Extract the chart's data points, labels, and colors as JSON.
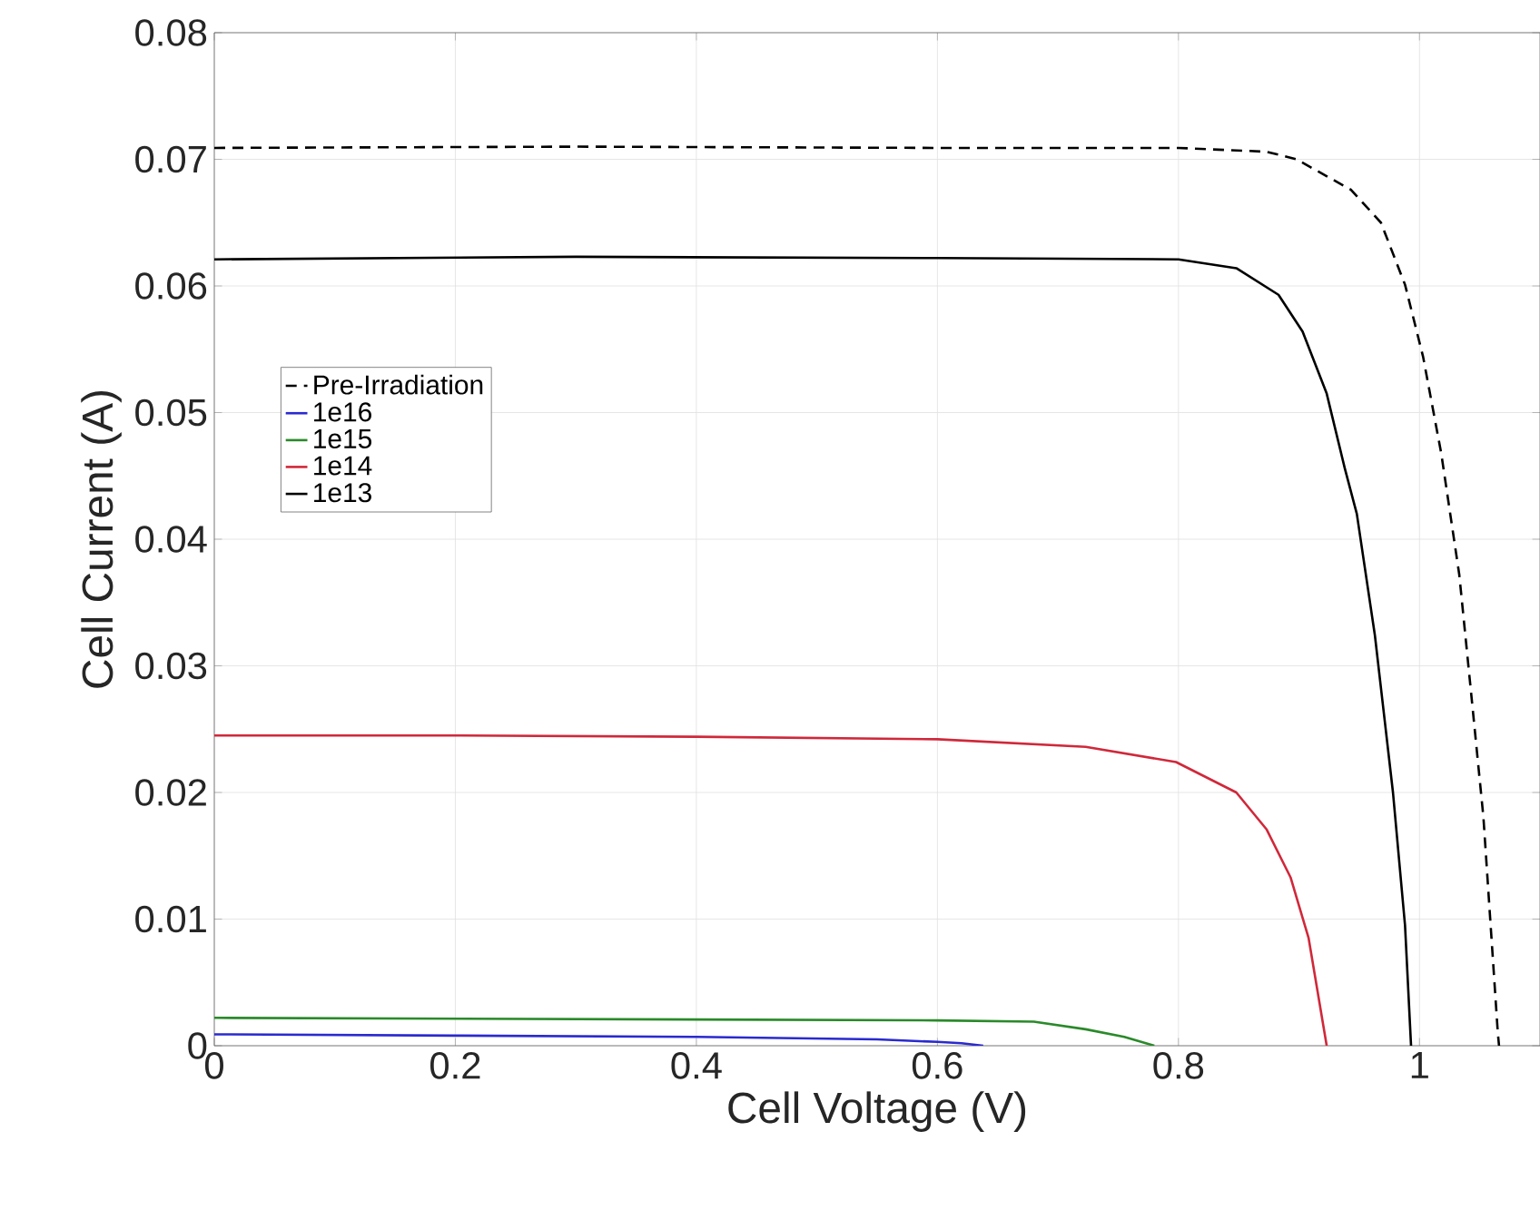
{
  "chart_data": {
    "type": "line",
    "xlabel": "Cell Voltage (V)",
    "ylabel": "Cell Current (A)",
    "xlim": [
      0,
      1.1
    ],
    "ylim": [
      0,
      0.08
    ],
    "xticks": [
      0,
      0.2,
      0.4,
      0.6,
      0.8,
      1
    ],
    "yticks": [
      0,
      0.01,
      0.02,
      0.03,
      0.04,
      0.05,
      0.06,
      0.07,
      0.08
    ],
    "grid": true,
    "legend": "left",
    "series": [
      {
        "name": "Pre-Irradiation",
        "color": "#000000",
        "line_style": "dashed",
        "x": [
          0,
          0.3,
          0.6,
          0.8,
          0.873,
          0.898,
          0.943,
          0.968,
          0.988,
          1.003,
          1.018,
          1.033,
          1.043,
          1.053,
          1.065,
          1.066
        ],
        "values": [
          0.0709,
          0.071,
          0.0709,
          0.0709,
          0.0706,
          0.07,
          0.0676,
          0.065,
          0.0601,
          0.0544,
          0.0468,
          0.0372,
          0.0277,
          0.0181,
          0.001,
          0
        ]
      },
      {
        "name": "1e16",
        "color": "#2a2ad0",
        "x": [
          0,
          0.2,
          0.4,
          0.55,
          0.6,
          0.62,
          0.638
        ],
        "values": [
          0.0009,
          0.0008,
          0.0007,
          0.0005,
          0.0003,
          0.0002,
          0
        ]
      },
      {
        "name": "1e15",
        "color": "#2a8a2a",
        "x": [
          0,
          0.3,
          0.6,
          0.68,
          0.723,
          0.755,
          0.78
        ],
        "values": [
          0.0022,
          0.0021,
          0.002,
          0.0019,
          0.0013,
          0.0007,
          0
        ]
      },
      {
        "name": "1e14",
        "color": "#d0283a",
        "x": [
          0,
          0.2,
          0.4,
          0.6,
          0.723,
          0.798,
          0.848,
          0.873,
          0.893,
          0.908,
          0.923
        ],
        "values": [
          0.0245,
          0.0245,
          0.0244,
          0.0242,
          0.0236,
          0.0224,
          0.02,
          0.0171,
          0.0133,
          0.0085,
          0
        ]
      },
      {
        "name": "1e13",
        "color": "#000000",
        "line_style": "solid",
        "x": [
          0,
          0.3,
          0.6,
          0.8,
          0.848,
          0.883,
          0.903,
          0.923,
          0.938,
          0.948,
          0.963,
          0.978,
          0.988,
          0.993
        ],
        "values": [
          0.0621,
          0.0623,
          0.0622,
          0.0621,
          0.0614,
          0.0593,
          0.0564,
          0.0515,
          0.0456,
          0.042,
          0.0324,
          0.02,
          0.0095,
          0
        ]
      }
    ]
  }
}
